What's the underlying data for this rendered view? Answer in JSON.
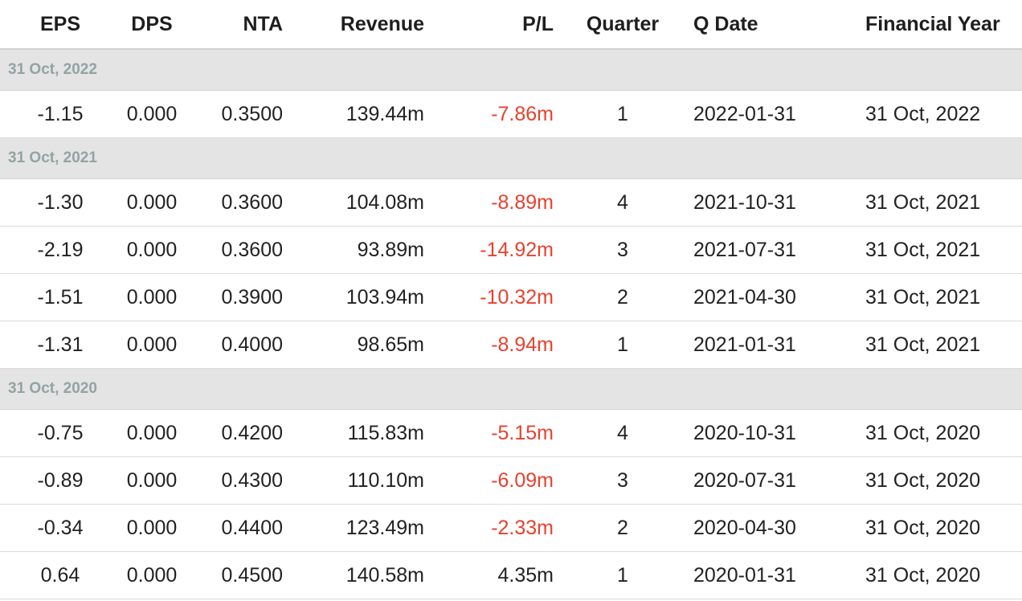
{
  "header": {
    "eps": "EPS",
    "dps": "DPS",
    "nta": "NTA",
    "revenue": "Revenue",
    "pl": "P/L",
    "quarter": "Quarter",
    "q_date": "Q Date",
    "financial_year": "Financial Year"
  },
  "colors": {
    "negative": "#e8412e",
    "group_background": "#e4e4e4",
    "group_label": "#92a3a3"
  },
  "groups": [
    {
      "label": "31 Oct, 2022",
      "rows": [
        {
          "eps": "-1.15",
          "dps": "0.000",
          "nta": "0.3500",
          "revenue": "139.44m",
          "pl": "-7.86m",
          "pl_negative": true,
          "quarter": "1",
          "q_date": "2022-01-31",
          "financial_year": "31 Oct, 2022"
        }
      ]
    },
    {
      "label": "31 Oct, 2021",
      "rows": [
        {
          "eps": "-1.30",
          "dps": "0.000",
          "nta": "0.3600",
          "revenue": "104.08m",
          "pl": "-8.89m",
          "pl_negative": true,
          "quarter": "4",
          "q_date": "2021-10-31",
          "financial_year": "31 Oct, 2021"
        },
        {
          "eps": "-2.19",
          "dps": "0.000",
          "nta": "0.3600",
          "revenue": "93.89m",
          "pl": "-14.92m",
          "pl_negative": true,
          "quarter": "3",
          "q_date": "2021-07-31",
          "financial_year": "31 Oct, 2021"
        },
        {
          "eps": "-1.51",
          "dps": "0.000",
          "nta": "0.3900",
          "revenue": "103.94m",
          "pl": "-10.32m",
          "pl_negative": true,
          "quarter": "2",
          "q_date": "2021-04-30",
          "financial_year": "31 Oct, 2021"
        },
        {
          "eps": "-1.31",
          "dps": "0.000",
          "nta": "0.4000",
          "revenue": "98.65m",
          "pl": "-8.94m",
          "pl_negative": true,
          "quarter": "1",
          "q_date": "2021-01-31",
          "financial_year": "31 Oct, 2021"
        }
      ]
    },
    {
      "label": "31 Oct, 2020",
      "rows": [
        {
          "eps": "-0.75",
          "dps": "0.000",
          "nta": "0.4200",
          "revenue": "115.83m",
          "pl": "-5.15m",
          "pl_negative": true,
          "quarter": "4",
          "q_date": "2020-10-31",
          "financial_year": "31 Oct, 2020"
        },
        {
          "eps": "-0.89",
          "dps": "0.000",
          "nta": "0.4300",
          "revenue": "110.10m",
          "pl": "-6.09m",
          "pl_negative": true,
          "quarter": "3",
          "q_date": "2020-07-31",
          "financial_year": "31 Oct, 2020"
        },
        {
          "eps": "-0.34",
          "dps": "0.000",
          "nta": "0.4400",
          "revenue": "123.49m",
          "pl": "-2.33m",
          "pl_negative": true,
          "quarter": "2",
          "q_date": "2020-04-30",
          "financial_year": "31 Oct, 2020"
        },
        {
          "eps": "0.64",
          "dps": "0.000",
          "nta": "0.4500",
          "revenue": "140.58m",
          "pl": "4.35m",
          "pl_negative": false,
          "quarter": "1",
          "q_date": "2020-01-31",
          "financial_year": "31 Oct, 2020"
        }
      ]
    }
  ]
}
